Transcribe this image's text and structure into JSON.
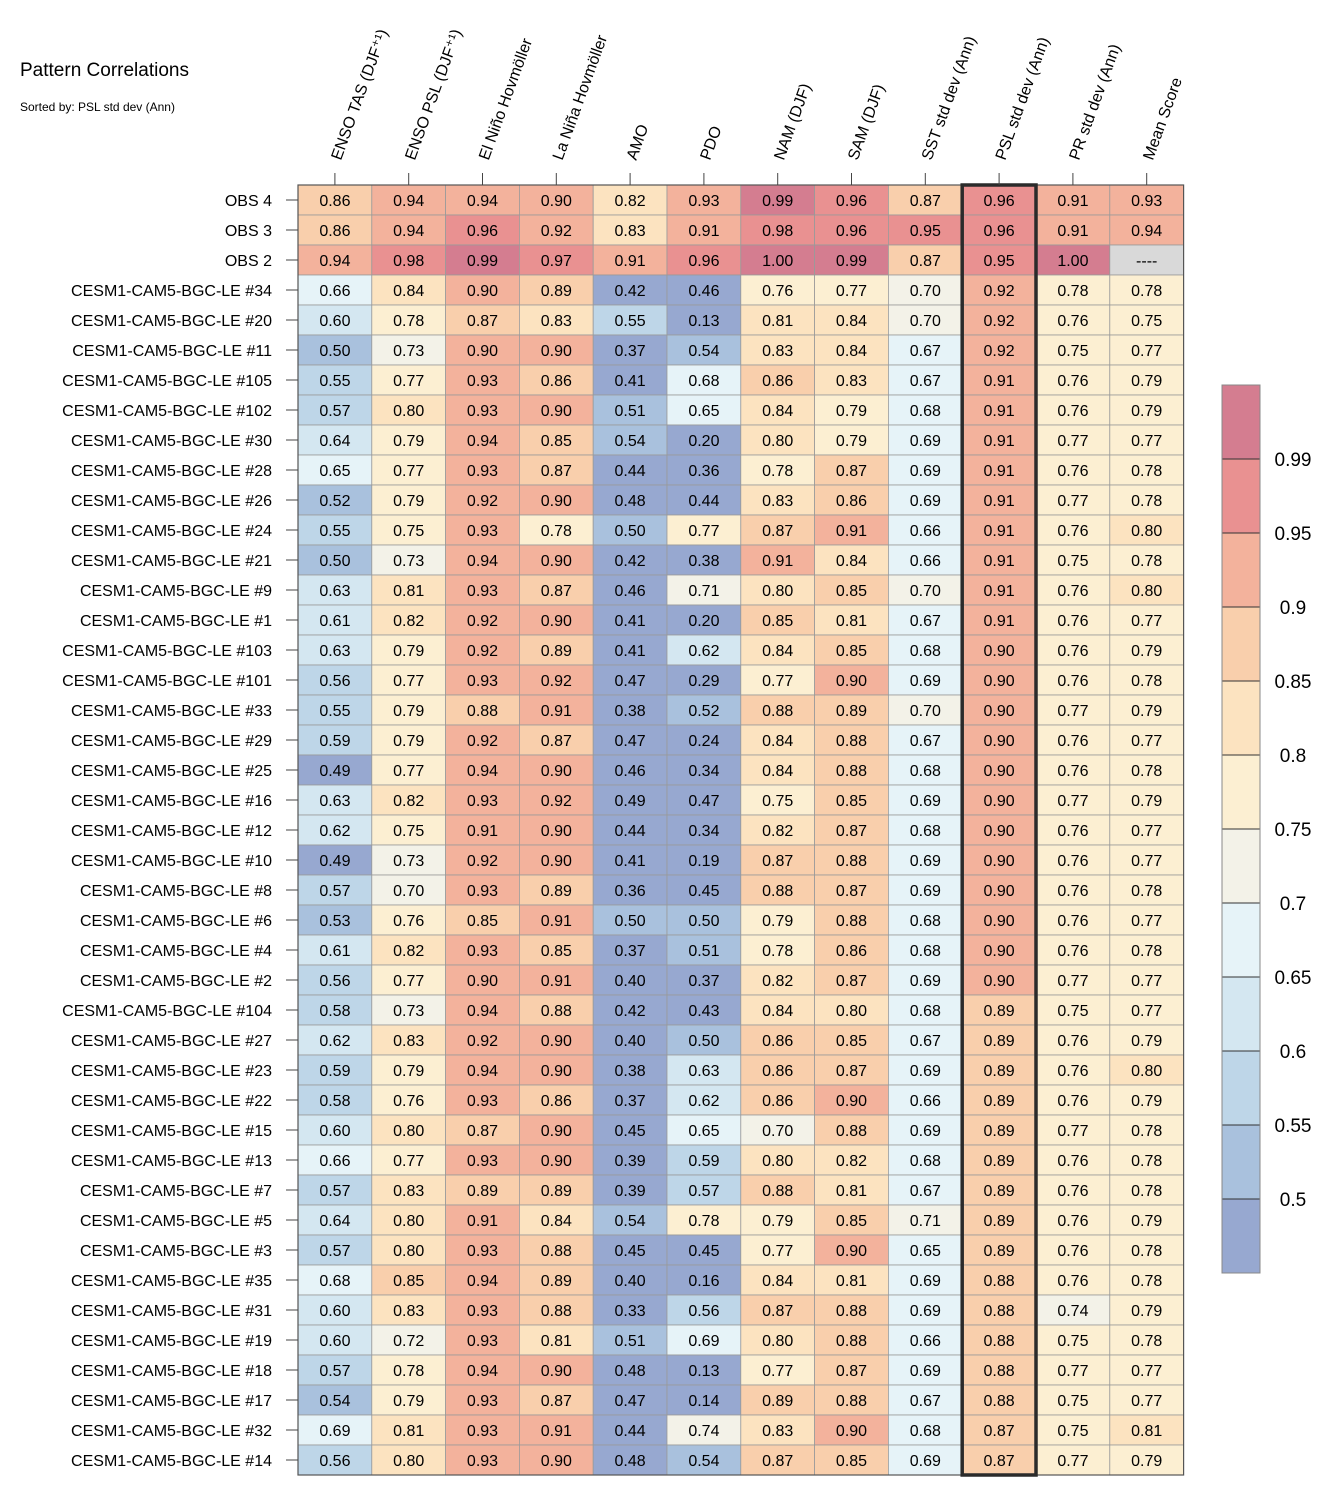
{
  "chart_data": {
    "type": "heatmap",
    "title": "Pattern Correlations",
    "subtitle": "Sorted by: PSL std dev (Ann)",
    "highlighted_column": "PSL std dev (Ann)",
    "columns": [
      "ENSO TAS (DJF⁺¹)",
      "ENSO PSL (DJF⁺¹)",
      "El Niño Hovmöller",
      "La Niña Hovmöller",
      "AMO",
      "PDO",
      "NAM (DJF)",
      "SAM (DJF)",
      "SST std dev (Ann)",
      "PSL std dev (Ann)",
      "PR std dev (Ann)",
      "Mean Score"
    ],
    "rows": [
      "OBS 4",
      "OBS 3",
      "OBS 2",
      "CESM1-CAM5-BGC-LE #34",
      "CESM1-CAM5-BGC-LE #20",
      "CESM1-CAM5-BGC-LE #11",
      "CESM1-CAM5-BGC-LE #105",
      "CESM1-CAM5-BGC-LE #102",
      "CESM1-CAM5-BGC-LE #30",
      "CESM1-CAM5-BGC-LE #28",
      "CESM1-CAM5-BGC-LE #26",
      "CESM1-CAM5-BGC-LE #24",
      "CESM1-CAM5-BGC-LE #21",
      "CESM1-CAM5-BGC-LE #9",
      "CESM1-CAM5-BGC-LE #1",
      "CESM1-CAM5-BGC-LE #103",
      "CESM1-CAM5-BGC-LE #101",
      "CESM1-CAM5-BGC-LE #33",
      "CESM1-CAM5-BGC-LE #29",
      "CESM1-CAM5-BGC-LE #25",
      "CESM1-CAM5-BGC-LE #16",
      "CESM1-CAM5-BGC-LE #12",
      "CESM1-CAM5-BGC-LE #10",
      "CESM1-CAM5-BGC-LE #8",
      "CESM1-CAM5-BGC-LE #6",
      "CESM1-CAM5-BGC-LE #4",
      "CESM1-CAM5-BGC-LE #2",
      "CESM1-CAM5-BGC-LE #104",
      "CESM1-CAM5-BGC-LE #27",
      "CESM1-CAM5-BGC-LE #23",
      "CESM1-CAM5-BGC-LE #22",
      "CESM1-CAM5-BGC-LE #15",
      "CESM1-CAM5-BGC-LE #13",
      "CESM1-CAM5-BGC-LE #7",
      "CESM1-CAM5-BGC-LE #5",
      "CESM1-CAM5-BGC-LE #3",
      "CESM1-CAM5-BGC-LE #35",
      "CESM1-CAM5-BGC-LE #31",
      "CESM1-CAM5-BGC-LE #19",
      "CESM1-CAM5-BGC-LE #18",
      "CESM1-CAM5-BGC-LE #17",
      "CESM1-CAM5-BGC-LE #32",
      "CESM1-CAM5-BGC-LE #14"
    ],
    "values": [
      [
        "0.86",
        "0.94",
        "0.94",
        "0.90",
        "0.82",
        "0.93",
        "0.99",
        "0.96",
        "0.87",
        "0.96",
        "0.91",
        "0.93"
      ],
      [
        "0.86",
        "0.94",
        "0.96",
        "0.92",
        "0.83",
        "0.91",
        "0.98",
        "0.96",
        "0.95",
        "0.96",
        "0.91",
        "0.94"
      ],
      [
        "0.94",
        "0.98",
        "0.99",
        "0.97",
        "0.91",
        "0.96",
        "1.00",
        "0.99",
        "0.87",
        "0.95",
        "1.00",
        "----"
      ],
      [
        "0.66",
        "0.84",
        "0.90",
        "0.89",
        "0.42",
        "0.46",
        "0.76",
        "0.77",
        "0.70",
        "0.92",
        "0.78",
        "0.78"
      ],
      [
        "0.60",
        "0.78",
        "0.87",
        "0.83",
        "0.55",
        "0.13",
        "0.81",
        "0.84",
        "0.70",
        "0.92",
        "0.76",
        "0.75"
      ],
      [
        "0.50",
        "0.73",
        "0.90",
        "0.90",
        "0.37",
        "0.54",
        "0.83",
        "0.84",
        "0.67",
        "0.92",
        "0.75",
        "0.77"
      ],
      [
        "0.55",
        "0.77",
        "0.93",
        "0.86",
        "0.41",
        "0.68",
        "0.86",
        "0.83",
        "0.67",
        "0.91",
        "0.76",
        "0.79"
      ],
      [
        "0.57",
        "0.80",
        "0.93",
        "0.90",
        "0.51",
        "0.65",
        "0.84",
        "0.79",
        "0.68",
        "0.91",
        "0.76",
        "0.79"
      ],
      [
        "0.64",
        "0.79",
        "0.94",
        "0.85",
        "0.54",
        "0.20",
        "0.80",
        "0.79",
        "0.69",
        "0.91",
        "0.77",
        "0.77"
      ],
      [
        "0.65",
        "0.77",
        "0.93",
        "0.87",
        "0.44",
        "0.36",
        "0.78",
        "0.87",
        "0.69",
        "0.91",
        "0.76",
        "0.78"
      ],
      [
        "0.52",
        "0.79",
        "0.92",
        "0.90",
        "0.48",
        "0.44",
        "0.83",
        "0.86",
        "0.69",
        "0.91",
        "0.77",
        "0.78"
      ],
      [
        "0.55",
        "0.75",
        "0.93",
        "0.78",
        "0.50",
        "0.77",
        "0.87",
        "0.91",
        "0.66",
        "0.91",
        "0.76",
        "0.80"
      ],
      [
        "0.50",
        "0.73",
        "0.94",
        "0.90",
        "0.42",
        "0.38",
        "0.91",
        "0.84",
        "0.66",
        "0.91",
        "0.75",
        "0.78"
      ],
      [
        "0.63",
        "0.81",
        "0.93",
        "0.87",
        "0.46",
        "0.71",
        "0.80",
        "0.85",
        "0.70",
        "0.91",
        "0.76",
        "0.80"
      ],
      [
        "0.61",
        "0.82",
        "0.92",
        "0.90",
        "0.41",
        "0.20",
        "0.85",
        "0.81",
        "0.67",
        "0.91",
        "0.76",
        "0.77"
      ],
      [
        "0.63",
        "0.79",
        "0.92",
        "0.89",
        "0.41",
        "0.62",
        "0.84",
        "0.85",
        "0.68",
        "0.90",
        "0.76",
        "0.79"
      ],
      [
        "0.56",
        "0.77",
        "0.93",
        "0.92",
        "0.47",
        "0.29",
        "0.77",
        "0.90",
        "0.69",
        "0.90",
        "0.76",
        "0.78"
      ],
      [
        "0.55",
        "0.79",
        "0.88",
        "0.91",
        "0.38",
        "0.52",
        "0.88",
        "0.89",
        "0.70",
        "0.90",
        "0.77",
        "0.79"
      ],
      [
        "0.59",
        "0.79",
        "0.92",
        "0.87",
        "0.47",
        "0.24",
        "0.84",
        "0.88",
        "0.67",
        "0.90",
        "0.76",
        "0.77"
      ],
      [
        "0.49",
        "0.77",
        "0.94",
        "0.90",
        "0.46",
        "0.34",
        "0.84",
        "0.88",
        "0.68",
        "0.90",
        "0.76",
        "0.78"
      ],
      [
        "0.63",
        "0.82",
        "0.93",
        "0.92",
        "0.49",
        "0.47",
        "0.75",
        "0.85",
        "0.69",
        "0.90",
        "0.77",
        "0.79"
      ],
      [
        "0.62",
        "0.75",
        "0.91",
        "0.90",
        "0.44",
        "0.34",
        "0.82",
        "0.87",
        "0.68",
        "0.90",
        "0.76",
        "0.77"
      ],
      [
        "0.49",
        "0.73",
        "0.92",
        "0.90",
        "0.41",
        "0.19",
        "0.87",
        "0.88",
        "0.69",
        "0.90",
        "0.76",
        "0.77"
      ],
      [
        "0.57",
        "0.70",
        "0.93",
        "0.89",
        "0.36",
        "0.45",
        "0.88",
        "0.87",
        "0.69",
        "0.90",
        "0.76",
        "0.78"
      ],
      [
        "0.53",
        "0.76",
        "0.85",
        "0.91",
        "0.50",
        "0.50",
        "0.79",
        "0.88",
        "0.68",
        "0.90",
        "0.76",
        "0.77"
      ],
      [
        "0.61",
        "0.82",
        "0.93",
        "0.85",
        "0.37",
        "0.51",
        "0.78",
        "0.86",
        "0.68",
        "0.90",
        "0.76",
        "0.78"
      ],
      [
        "0.56",
        "0.77",
        "0.90",
        "0.91",
        "0.40",
        "0.37",
        "0.82",
        "0.87",
        "0.69",
        "0.90",
        "0.77",
        "0.77"
      ],
      [
        "0.58",
        "0.73",
        "0.94",
        "0.88",
        "0.42",
        "0.43",
        "0.84",
        "0.80",
        "0.68",
        "0.89",
        "0.75",
        "0.77"
      ],
      [
        "0.62",
        "0.83",
        "0.92",
        "0.90",
        "0.40",
        "0.50",
        "0.86",
        "0.85",
        "0.67",
        "0.89",
        "0.76",
        "0.79"
      ],
      [
        "0.59",
        "0.79",
        "0.94",
        "0.90",
        "0.38",
        "0.63",
        "0.86",
        "0.87",
        "0.69",
        "0.89",
        "0.76",
        "0.80"
      ],
      [
        "0.58",
        "0.76",
        "0.93",
        "0.86",
        "0.37",
        "0.62",
        "0.86",
        "0.90",
        "0.66",
        "0.89",
        "0.76",
        "0.79"
      ],
      [
        "0.60",
        "0.80",
        "0.87",
        "0.90",
        "0.45",
        "0.65",
        "0.70",
        "0.88",
        "0.69",
        "0.89",
        "0.77",
        "0.78"
      ],
      [
        "0.66",
        "0.77",
        "0.93",
        "0.90",
        "0.39",
        "0.59",
        "0.80",
        "0.82",
        "0.68",
        "0.89",
        "0.76",
        "0.78"
      ],
      [
        "0.57",
        "0.83",
        "0.89",
        "0.89",
        "0.39",
        "0.57",
        "0.88",
        "0.81",
        "0.67",
        "0.89",
        "0.76",
        "0.78"
      ],
      [
        "0.64",
        "0.80",
        "0.91",
        "0.84",
        "0.54",
        "0.78",
        "0.79",
        "0.85",
        "0.71",
        "0.89",
        "0.76",
        "0.79"
      ],
      [
        "0.57",
        "0.80",
        "0.93",
        "0.88",
        "0.45",
        "0.45",
        "0.77",
        "0.90",
        "0.65",
        "0.89",
        "0.76",
        "0.78"
      ],
      [
        "0.68",
        "0.85",
        "0.94",
        "0.89",
        "0.40",
        "0.16",
        "0.84",
        "0.81",
        "0.69",
        "0.88",
        "0.76",
        "0.78"
      ],
      [
        "0.60",
        "0.83",
        "0.93",
        "0.88",
        "0.33",
        "0.56",
        "0.87",
        "0.88",
        "0.69",
        "0.88",
        "0.74",
        "0.79"
      ],
      [
        "0.60",
        "0.72",
        "0.93",
        "0.81",
        "0.51",
        "0.69",
        "0.80",
        "0.88",
        "0.66",
        "0.88",
        "0.75",
        "0.78"
      ],
      [
        "0.57",
        "0.78",
        "0.94",
        "0.90",
        "0.48",
        "0.13",
        "0.77",
        "0.87",
        "0.69",
        "0.88",
        "0.77",
        "0.77"
      ],
      [
        "0.54",
        "0.79",
        "0.93",
        "0.87",
        "0.47",
        "0.14",
        "0.89",
        "0.88",
        "0.67",
        "0.88",
        "0.75",
        "0.77"
      ],
      [
        "0.69",
        "0.81",
        "0.93",
        "0.91",
        "0.44",
        "0.74",
        "0.83",
        "0.90",
        "0.68",
        "0.87",
        "0.75",
        "0.81"
      ],
      [
        "0.56",
        "0.80",
        "0.93",
        "0.90",
        "0.48",
        "0.54",
        "0.87",
        "0.85",
        "0.69",
        "0.87",
        "0.77",
        "0.79"
      ]
    ],
    "missing_color": "#d9d9d9",
    "colorbar": {
      "bounds": [
        0.45,
        0.5,
        0.55,
        0.6,
        0.65,
        0.7,
        0.75,
        0.8,
        0.85,
        0.9,
        0.95,
        0.99,
        1.0
      ],
      "tick_labels": [
        "0.5",
        "0.55",
        "0.6",
        "0.65",
        "0.7",
        "0.75",
        "0.8",
        "0.85",
        "0.9",
        "0.95",
        "0.99"
      ],
      "colors": [
        "#97a8d0",
        "#a9c1dd",
        "#bed6e8",
        "#d4e7f1",
        "#e6f3f8",
        "#f3f2e8",
        "#fcefd2",
        "#fce3c0",
        "#f9cfac",
        "#f3b29c",
        "#e99191",
        "#d47d90"
      ]
    }
  }
}
